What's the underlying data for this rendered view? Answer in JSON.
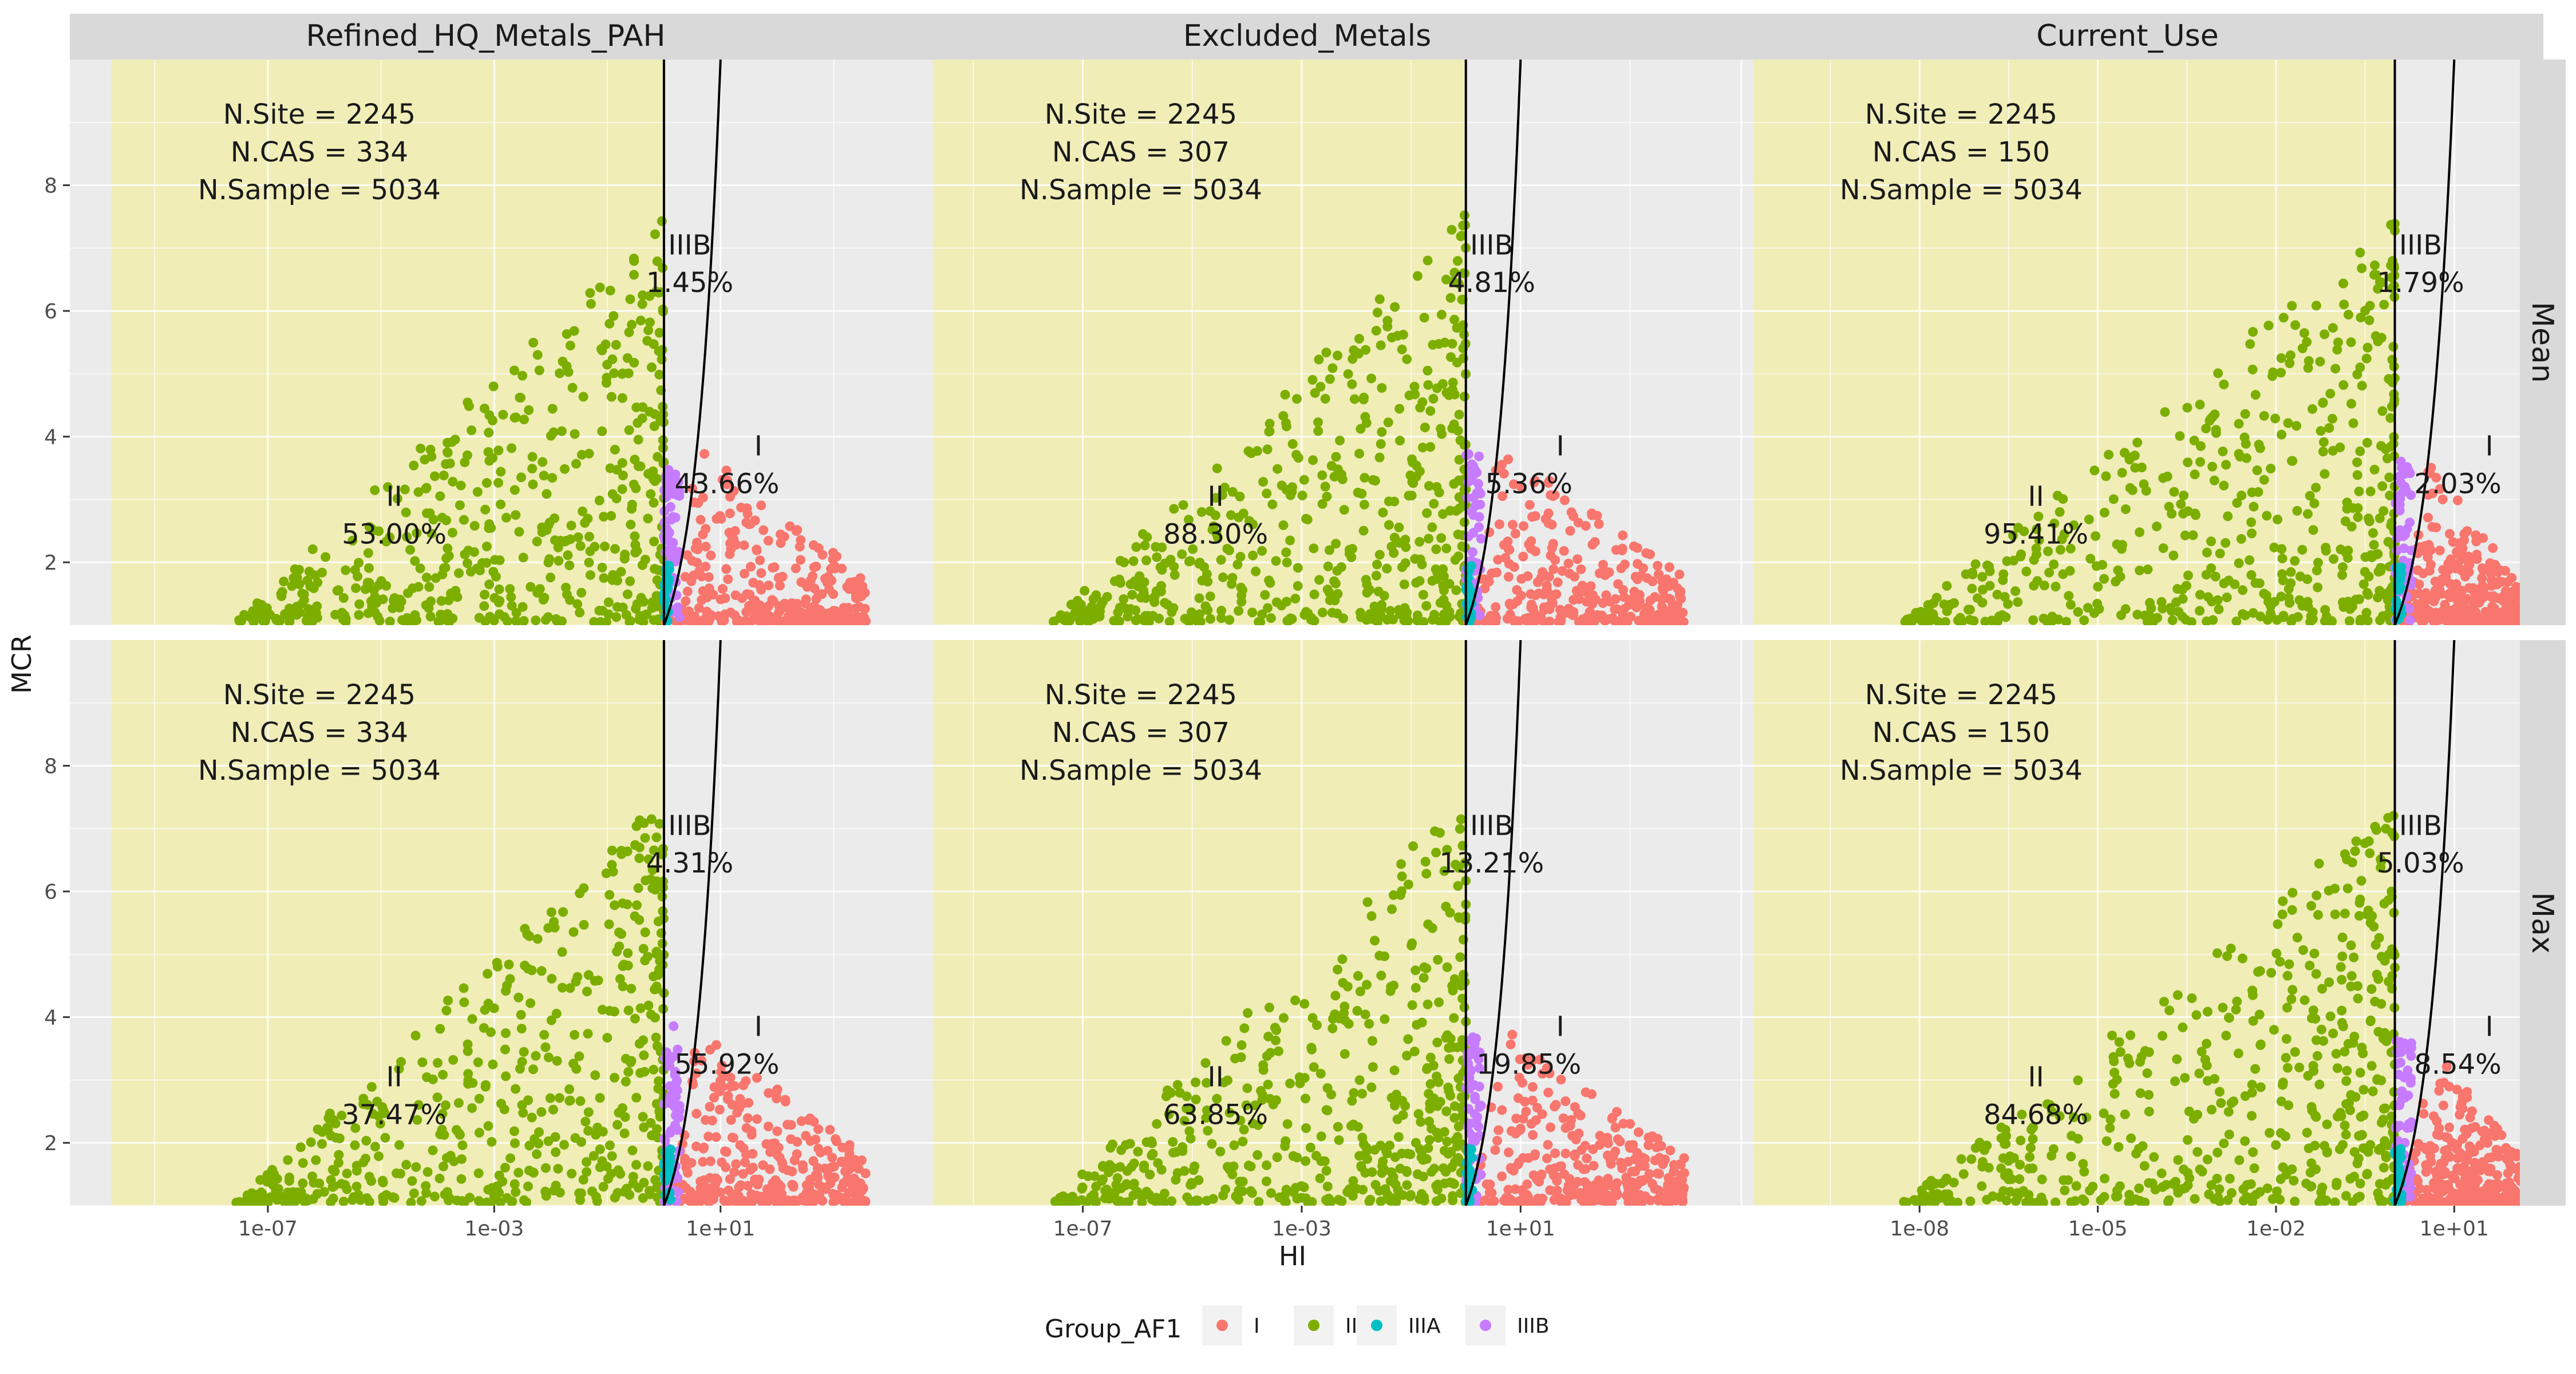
{
  "chart_data": {
    "type": "scatter",
    "x_label": "HI",
    "y_label": "MCR",
    "x_scale": "log10",
    "ylim": [
      1,
      10
    ],
    "y_ticks": [
      2,
      4,
      6,
      8
    ],
    "grid": true,
    "legend": {
      "title": "Group_AF1",
      "position": "bottom",
      "entries": [
        {
          "label": "I",
          "color": "#F8766D"
        },
        {
          "label": "II",
          "color": "#7CAE00"
        },
        {
          "label": "IIIA",
          "color": "#00BFC4"
        },
        {
          "label": "IIIB",
          "color": "#C77CFF"
        }
      ]
    },
    "rows": [
      "Mean",
      "Max"
    ],
    "columns": [
      {
        "name": "Refined_HQ_Metals_PAH",
        "x_ticks": [
          "1e-07",
          "1e-03",
          "1e+01"
        ],
        "x_tick_exps": [
          -7,
          -3,
          1
        ],
        "xlog_range": [
          -10.5,
          4.2
        ]
      },
      {
        "name": "Excluded_Metals",
        "x_ticks": [
          "1e-07",
          "1e-03",
          "1e+01"
        ],
        "x_tick_exps": [
          -7,
          -3,
          1
        ],
        "xlog_range": [
          -10.5,
          4.7
        ]
      },
      {
        "name": "Current_Use",
        "x_ticks": [
          "1e-08",
          "1e-05",
          "1e-02",
          "1e+01"
        ],
        "x_tick_exps": [
          -8,
          -5,
          -2,
          1
        ],
        "xlog_range": [
          -11.5,
          2.5
        ]
      }
    ],
    "panels": [
      {
        "row": "Mean",
        "column": "Refined_HQ_Metals_PAH",
        "n_site": "N.Site = 2245",
        "n_cas": "N.CAS = 334",
        "n_sample": "N.Sample = 5034",
        "ii_pct": "53.00%",
        "iiib_pct": "1.45%",
        "i_pct": "43.66%"
      },
      {
        "row": "Mean",
        "column": "Excluded_Metals",
        "n_site": "N.Site = 2245",
        "n_cas": "N.CAS = 307",
        "n_sample": "N.Sample = 5034",
        "ii_pct": "88.30%",
        "iiib_pct": "4.81%",
        "i_pct": "5.36%"
      },
      {
        "row": "Mean",
        "column": "Current_Use",
        "n_site": "N.Site = 2245",
        "n_cas": "N.CAS = 150",
        "n_sample": "N.Sample = 5034",
        "ii_pct": "95.41%",
        "iiib_pct": "1.79%",
        "i_pct": "2.03%"
      },
      {
        "row": "Max",
        "column": "Refined_HQ_Metals_PAH",
        "n_site": "N.Site = 2245",
        "n_cas": "N.CAS = 334",
        "n_sample": "N.Sample = 5034",
        "ii_pct": "37.47%",
        "iiib_pct": "4.31%",
        "i_pct": "55.92%"
      },
      {
        "row": "Max",
        "column": "Excluded_Metals",
        "n_site": "N.Site = 2245",
        "n_cas": "N.CAS = 307",
        "n_sample": "N.Sample = 5034",
        "ii_pct": "63.85%",
        "iiib_pct": "13.21%",
        "i_pct": "19.85%"
      },
      {
        "row": "Max",
        "column": "Current_Use",
        "n_site": "N.Site = 2245",
        "n_cas": "N.CAS = 150",
        "n_sample": "N.Sample = 5034",
        "ii_pct": "84.68%",
        "iiib_pct": "5.03%",
        "i_pct": "8.54%"
      }
    ],
    "region_labels": {
      "II": "II",
      "IIIB": "IIIB",
      "I": "I"
    },
    "boundaries": {
      "vertical_line_HI": 1,
      "curve": "HI = MCR",
      "shaded_region": "HI < 1"
    },
    "colors": {
      "panel_bg": "#EBEBEB",
      "grid": "#FFFFFF",
      "strip_bg": "#D9D9D9",
      "shaded_region": "#F0EDB7",
      "line": "#000000"
    }
  }
}
